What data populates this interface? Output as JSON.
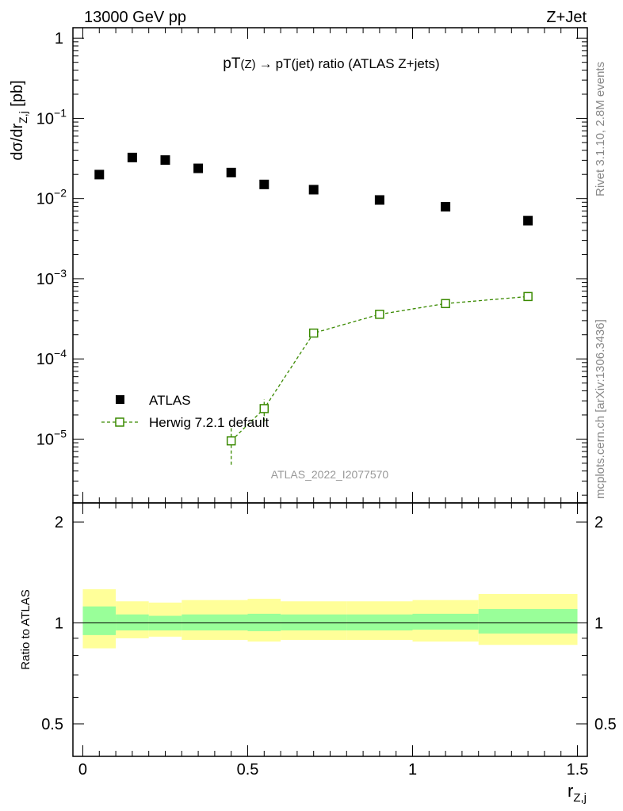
{
  "header": {
    "left": "13000 GeV pp",
    "right": "Z+Jet"
  },
  "plot_title": {
    "main": "pT",
    "mid": "(Z)",
    "arrow": "→",
    "rest": "pT(jet) ratio (ATLAS Z+jets)"
  },
  "side_labels": {
    "rivet": "Rivet 3.1.10,  2.8M events",
    "mcplots": "mcplots.cern.ch [arXiv:1306.3436]"
  },
  "watermark": "ATLAS_2022_I2077570",
  "colors": {
    "data": "#000000",
    "mc": "#3a8a00",
    "band_inner": "#99ff99",
    "band_outer": "#ffff99",
    "side_text": "#888888"
  },
  "axes": {
    "ylabel_main": {
      "base": "dσ/dr",
      "sub": "Z,j",
      "unit": " [pb]"
    },
    "ylabel_ratio": "Ratio to ATLAS",
    "xlabel": {
      "base": "r",
      "sub": "Z,j"
    },
    "x_ticks": [
      "0",
      "0.5",
      "1",
      "1.5"
    ],
    "main_y_ticks": [
      {
        "base": "1",
        "exp": ""
      },
      {
        "base": "10",
        "exp": "−1"
      },
      {
        "base": "10",
        "exp": "−2"
      },
      {
        "base": "10",
        "exp": "−3"
      },
      {
        "base": "10",
        "exp": "−4"
      },
      {
        "base": "10",
        "exp": "−5"
      }
    ],
    "ratio_y_ticks": [
      "0.5",
      "1",
      "2"
    ]
  },
  "chart_data": [
    {
      "type": "scatter",
      "xlim": [
        -0.03,
        1.53
      ],
      "ylim": [
        1.6e-06,
        1.35
      ],
      "log_y": true,
      "legend": "left",
      "series": [
        {
          "name": "ATLAS",
          "style": "filled-square",
          "x": [
            0.05,
            0.15,
            0.25,
            0.35,
            0.45,
            0.55,
            0.7,
            0.9,
            1.1,
            1.35
          ],
          "y": [
            0.0199,
            0.0325,
            0.0302,
            0.0238,
            0.0211,
            0.015,
            0.0129,
            0.0096,
            0.0079,
            0.0053
          ]
        },
        {
          "name": "Herwig 7.2.1 default",
          "style": "open-square-dashed",
          "x": [
            0.45,
            0.55,
            0.7,
            0.9,
            1.1,
            1.35
          ],
          "y": [
            9.5e-06,
            2.4e-05,
            0.00021,
            0.00036,
            0.00049,
            0.0006
          ],
          "y_low": [
            4.8e-06,
            1.65e-05,
            0.000205,
            0.000352,
            0.000483,
            0.000592
          ],
          "y_high": [
            1.45e-05,
            3.15e-05,
            0.000218,
            0.000368,
            0.000497,
            0.000608
          ]
        }
      ]
    },
    {
      "type": "area",
      "xlim": [
        -0.03,
        1.53
      ],
      "ylim": [
        0.4,
        2.28
      ],
      "log_y": true,
      "reference_line": 1,
      "bins": [
        {
          "x_low": 0.0,
          "x_high": 0.1,
          "inner": [
            0.92,
            1.12
          ],
          "outer": [
            0.84,
            1.26
          ]
        },
        {
          "x_low": 0.1,
          "x_high": 0.2,
          "inner": [
            0.95,
            1.06
          ],
          "outer": [
            0.9,
            1.16
          ]
        },
        {
          "x_low": 0.2,
          "x_high": 0.3,
          "inner": [
            0.95,
            1.05
          ],
          "outer": [
            0.91,
            1.15
          ]
        },
        {
          "x_low": 0.3,
          "x_high": 0.5,
          "inner": [
            0.95,
            1.06
          ],
          "outer": [
            0.89,
            1.17
          ]
        },
        {
          "x_low": 0.5,
          "x_high": 0.6,
          "inner": [
            0.945,
            1.065
          ],
          "outer": [
            0.88,
            1.18
          ]
        },
        {
          "x_low": 0.6,
          "x_high": 0.8,
          "inner": [
            0.95,
            1.06
          ],
          "outer": [
            0.89,
            1.16
          ]
        },
        {
          "x_low": 0.8,
          "x_high": 1.0,
          "inner": [
            0.95,
            1.06
          ],
          "outer": [
            0.89,
            1.16
          ]
        },
        {
          "x_low": 1.0,
          "x_high": 1.2,
          "inner": [
            0.955,
            1.065
          ],
          "outer": [
            0.88,
            1.17
          ]
        },
        {
          "x_low": 1.2,
          "x_high": 1.5,
          "inner": [
            0.93,
            1.1
          ],
          "outer": [
            0.86,
            1.22
          ]
        }
      ]
    }
  ]
}
